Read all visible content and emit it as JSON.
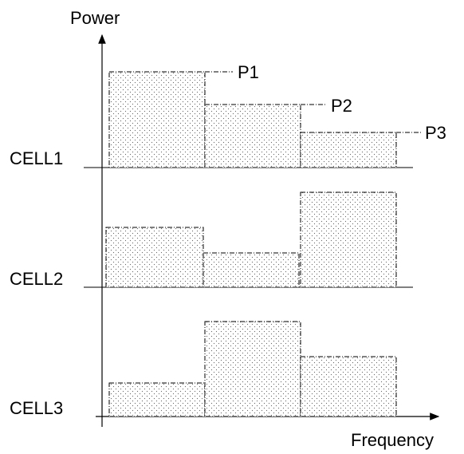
{
  "axes": {
    "y_label": "Power",
    "x_label": "Frequency"
  },
  "cells": [
    "CELL1",
    "CELL2",
    "CELL3"
  ],
  "power_labels": [
    "P1",
    "P2",
    "P3"
  ]
}
